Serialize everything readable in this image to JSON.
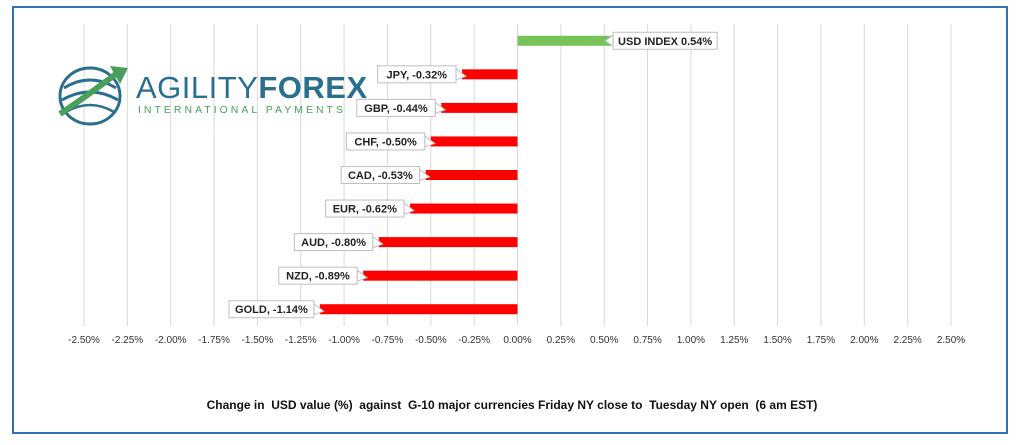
{
  "logo": {
    "brand_part1": "AGILITY",
    "brand_part2": "FOREX",
    "tagline": "INTERNATIONAL PAYMENTS"
  },
  "chart_data": {
    "type": "bar",
    "orientation": "horizontal",
    "categories": [
      "USD INDEX",
      "JPY",
      "GBP",
      "CHF",
      "CAD",
      "EUR",
      "AUD",
      "NZD",
      "GOLD"
    ],
    "values": [
      0.54,
      -0.32,
      -0.44,
      -0.5,
      -0.53,
      -0.62,
      -0.8,
      -0.89,
      -1.14
    ],
    "data_labels": [
      "USD INDEX 0.54%",
      "JPY, -0.32%",
      "GBP, -0.44%",
      "CHF, -0.50%",
      "CAD, -0.53%",
      "EUR, -0.62%",
      "AUD, -0.80%",
      "NZD, -0.89%",
      "GOLD, -1.14%"
    ],
    "xlim": [
      -2.5,
      2.5
    ],
    "x_ticks": [
      "-2.50%",
      "-2.25%",
      "-2.00%",
      "-1.75%",
      "-1.50%",
      "-1.25%",
      "-1.00%",
      "-0.75%",
      "-0.50%",
      "-0.25%",
      "0.00%",
      "0.25%",
      "0.50%",
      "0.75%",
      "1.00%",
      "1.25%",
      "1.50%",
      "1.75%",
      "2.00%",
      "2.25%",
      "2.50%"
    ],
    "x_tick_values": [
      -2.5,
      -2.25,
      -2.0,
      -1.75,
      -1.5,
      -1.25,
      -1.0,
      -0.75,
      -0.5,
      -0.25,
      0.0,
      0.25,
      0.5,
      0.75,
      1.0,
      1.25,
      1.5,
      1.75,
      2.0,
      2.25,
      2.5
    ],
    "grid": true,
    "colors": {
      "positive": "#78c25a",
      "negative": "#ff0000",
      "grid": "#d9d9d9"
    },
    "title": "Change in  USD value (%)  against  G-10 major currencies Friday NY close to  Tuesday NY open  (6 am EST)"
  }
}
